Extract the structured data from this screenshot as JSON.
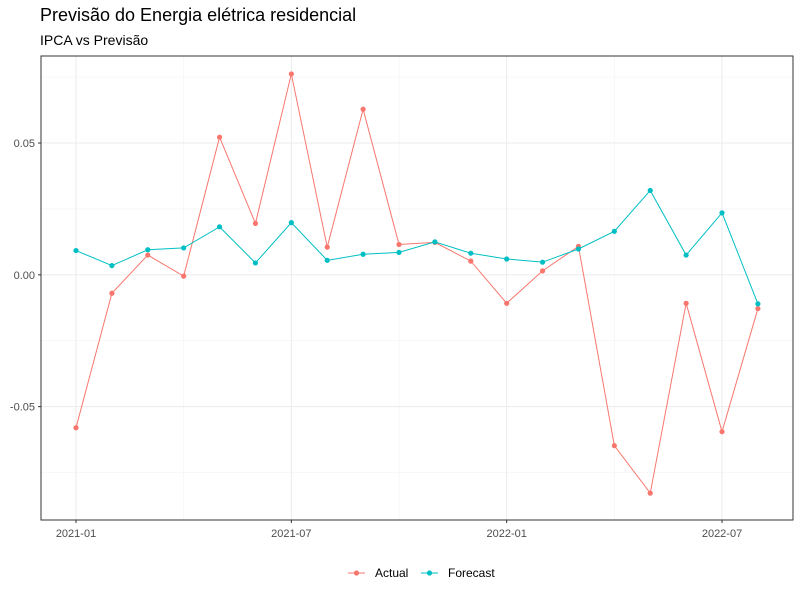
{
  "title": "Previsão do Energia elétrica residencial",
  "subtitle": "IPCA vs Previsão",
  "chart_data": {
    "type": "line",
    "x": [
      "2021-01",
      "2021-02",
      "2021-03",
      "2021-04",
      "2021-05",
      "2021-06",
      "2021-07",
      "2021-08",
      "2021-09",
      "2021-10",
      "2021-11",
      "2021-12",
      "2022-01",
      "2022-02",
      "2022-03",
      "2022-04",
      "2022-05",
      "2022-06",
      "2022-07",
      "2022-08"
    ],
    "x_tick_labels": [
      "2021-01",
      "2021-07",
      "2022-01",
      "2022-07"
    ],
    "y_tick_values": [
      -0.05,
      0.0,
      0.05
    ],
    "y_tick_labels": [
      "-0.05",
      "0.00",
      "0.05"
    ],
    "ylim": [
      -0.093,
      0.083
    ],
    "grid": true,
    "legend_position": "bottom",
    "series": [
      {
        "name": "Actual",
        "color": "#F8766D",
        "values": [
          -0.058,
          -0.007,
          0.0075,
          -0.0005,
          0.0522,
          0.0195,
          0.0762,
          0.0105,
          0.0628,
          0.0115,
          0.0123,
          0.0052,
          -0.0108,
          0.0015,
          0.0108,
          -0.0648,
          -0.0828,
          -0.0108,
          -0.0595,
          -0.0128
        ]
      },
      {
        "name": "Forecast",
        "color": "#00BFC4",
        "values": [
          0.0092,
          0.0035,
          0.0095,
          0.0102,
          0.0182,
          0.0045,
          0.0198,
          0.0055,
          0.0078,
          0.0085,
          0.0125,
          0.0082,
          0.006,
          0.0048,
          0.0098,
          0.0165,
          0.032,
          0.0075,
          0.0235,
          -0.011
        ]
      }
    ]
  }
}
